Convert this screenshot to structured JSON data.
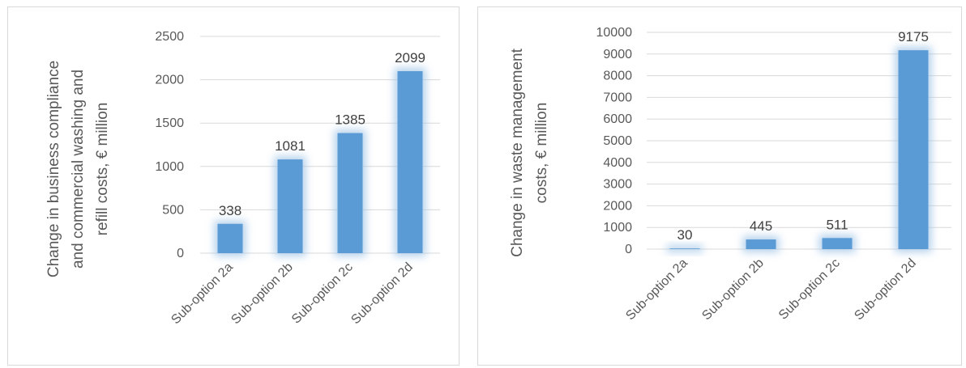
{
  "charts": [
    {
      "type": "bar",
      "categories": [
        "Sub-option 2a",
        "Sub-option 2b",
        "Sub-option 2c",
        "Sub-option 2d"
      ],
      "values": [
        338,
        1081,
        1385,
        2099
      ],
      "data_labels": [
        "338",
        "1081",
        "1385",
        "2099"
      ],
      "ylabel_lines": [
        "Change in business compliance",
        "and commercial washing and",
        "refill costs, € million"
      ],
      "ylim": [
        0,
        2500
      ],
      "ticks": [
        "0",
        "500",
        "1000",
        "1500",
        "2000",
        "2500"
      ],
      "bar_color": "#5b9bd5",
      "glow_color": "#9dc3e6",
      "grid": true,
      "legend": "none"
    },
    {
      "type": "bar",
      "categories": [
        "Sub-option 2a",
        "Sub-option 2b",
        "Sub-option 2c",
        "Sub-option 2d"
      ],
      "values": [
        30,
        445,
        511,
        9175
      ],
      "data_labels": [
        "30",
        "445",
        "511",
        "9175"
      ],
      "ylabel_lines": [
        "Change in waste management",
        "costs, € million"
      ],
      "ylim": [
        0,
        10000
      ],
      "ticks": [
        "0",
        "1000",
        "2000",
        "3000",
        "4000",
        "5000",
        "6000",
        "7000",
        "8000",
        "9000",
        "10000"
      ],
      "bar_color": "#5b9bd5",
      "glow_color": "#9dc3e6",
      "grid": true,
      "legend": "none"
    }
  ]
}
